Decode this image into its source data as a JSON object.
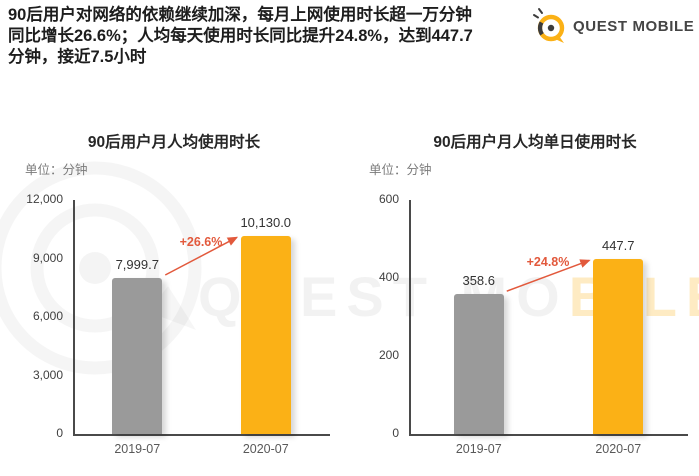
{
  "header": {
    "headline_lines": [
      "90后用户对网络的依赖继续加深，每月上网使用时长超一万分钟",
      "同比增长26.6%；人均每天使用时长同比提升24.8%，达到447.7",
      "分钟，接近7.5小时"
    ],
    "logo": {
      "brand": "QUEST MOBILE",
      "icon": "questmobile-logo-icon"
    }
  },
  "watermark": {
    "text_gray": "QUEST MO",
    "text_yellow": "BILE"
  },
  "colors": {
    "bar_previous_gray": "#9a9a9a",
    "bar_current_yellow": "#fbb116",
    "growth_red": "#e2593c",
    "axis_dark": "#4a4a4a",
    "brand_yellow": "#fbb116"
  },
  "chart_data": [
    {
      "type": "bar",
      "title": "90后用户月人均使用时长",
      "unit_label": "单位：分钟",
      "categories": [
        "2019-07",
        "2020-07"
      ],
      "values": [
        7999.7,
        10130.0
      ],
      "value_labels": [
        "7,999.7",
        "10,130.0"
      ],
      "growth_label": "+26.6%",
      "ylim": [
        0,
        12000
      ],
      "ytick_labels": [
        "0",
        "3,000",
        "6,000",
        "9,000",
        "12,000"
      ],
      "bar_colors": [
        "#9a9a9a",
        "#fbb116"
      ],
      "legend": "none",
      "grid": "off"
    },
    {
      "type": "bar",
      "title": "90后用户月人均单日使用时长",
      "unit_label": "单位：分钟",
      "categories": [
        "2019-07",
        "2020-07"
      ],
      "values": [
        358.6,
        447.7
      ],
      "value_labels": [
        "358.6",
        "447.7"
      ],
      "growth_label": "+24.8%",
      "ylim": [
        0,
        600
      ],
      "ytick_labels": [
        "0",
        "200",
        "400",
        "600"
      ],
      "bar_colors": [
        "#9a9a9a",
        "#fbb116"
      ],
      "legend": "none",
      "grid": "off"
    }
  ]
}
